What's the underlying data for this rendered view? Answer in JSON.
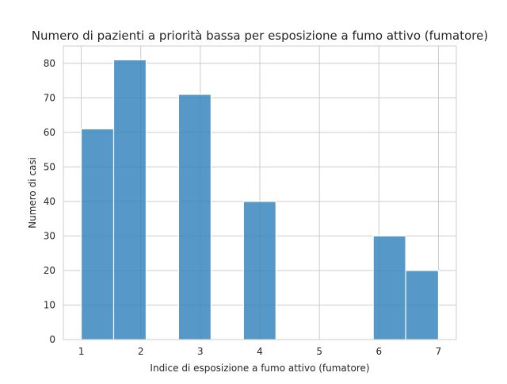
{
  "chart_data": {
    "type": "bar",
    "histogram": true,
    "title": "Numero di pazienti a priorità bassa per esposizione a fumo attivo (fumatore)",
    "xlabel": "Indice di esposizione a fumo attivo (fumatore)",
    "ylabel": "Numero di casi",
    "xlim": [
      0.7,
      7.3
    ],
    "ylim": [
      0,
      85
    ],
    "xticks": [
      1,
      2,
      3,
      4,
      5,
      6,
      7
    ],
    "yticks": [
      0,
      10,
      20,
      30,
      40,
      50,
      60,
      70,
      80
    ],
    "grid": true,
    "bar_color": "#3182bd",
    "bins": [
      {
        "start": 1.0,
        "end": 1.545,
        "value": 61
      },
      {
        "start": 1.545,
        "end": 2.09,
        "value": 81
      },
      {
        "start": 2.09,
        "end": 2.635,
        "value": 0
      },
      {
        "start": 2.635,
        "end": 3.18,
        "value": 71
      },
      {
        "start": 3.18,
        "end": 3.725,
        "value": 0
      },
      {
        "start": 3.725,
        "end": 4.27,
        "value": 40
      },
      {
        "start": 4.27,
        "end": 4.815,
        "value": 0
      },
      {
        "start": 4.815,
        "end": 5.36,
        "value": 0
      },
      {
        "start": 5.36,
        "end": 5.905,
        "value": 0
      },
      {
        "start": 5.905,
        "end": 6.45,
        "value": 30
      },
      {
        "start": 6.45,
        "end": 7.0,
        "value": 20
      }
    ]
  }
}
